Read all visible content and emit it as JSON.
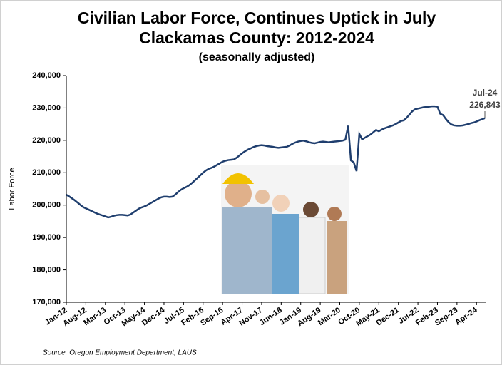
{
  "chart_data": {
    "type": "line",
    "title": [
      "Civilian Labor Force, Continues Uptick in July",
      "Clackamas County: 2012-2024"
    ],
    "subtitle": "(seasonally adjusted)",
    "y_label": "Labor Force",
    "source": "Source: Oregon Employment Department, LAUS",
    "categories": [
      "Jan-12",
      null,
      null,
      null,
      null,
      null,
      null,
      "Aug-12",
      null,
      null,
      null,
      null,
      null,
      null,
      "Mar-13",
      null,
      null,
      null,
      null,
      null,
      null,
      "Oct-13",
      null,
      null,
      null,
      null,
      null,
      null,
      "May-14",
      null,
      null,
      null,
      null,
      null,
      null,
      "Dec-14",
      null,
      null,
      null,
      null,
      null,
      null,
      "Jul-15",
      null,
      null,
      null,
      null,
      null,
      null,
      "Feb-16",
      null,
      null,
      null,
      null,
      null,
      null,
      "Sep-16",
      null,
      null,
      null,
      null,
      null,
      null,
      "Apr-17",
      null,
      null,
      null,
      null,
      null,
      null,
      "Nov-17",
      null,
      null,
      null,
      null,
      null,
      null,
      "Jun-18",
      null,
      null,
      null,
      null,
      null,
      null,
      "Jan-19",
      null,
      null,
      null,
      null,
      null,
      null,
      "Aug-19",
      null,
      null,
      null,
      null,
      null,
      null,
      "Mar-20",
      null,
      null,
      null,
      null,
      null,
      null,
      "Oct-20",
      null,
      null,
      null,
      null,
      null,
      null,
      "May-21",
      null,
      null,
      null,
      null,
      null,
      null,
      "Dec-21",
      null,
      null,
      null,
      null,
      null,
      null,
      "Jul-22",
      null,
      null,
      null,
      null,
      null,
      null,
      "Feb-23",
      null,
      null,
      null,
      null,
      null,
      null,
      "Sep-23",
      null,
      null,
      null,
      null,
      null,
      null,
      "Apr-24",
      null,
      null,
      null
    ],
    "series": [
      {
        "name": "Labor Force",
        "color": "#1f3e6e",
        "values": [
          203200,
          202700,
          202100,
          201500,
          200800,
          200100,
          199400,
          199000,
          198600,
          198200,
          197800,
          197400,
          197100,
          196800,
          196500,
          196200,
          196400,
          196700,
          196900,
          197000,
          197000,
          196900,
          196800,
          197100,
          197700,
          198300,
          198900,
          199300,
          199600,
          200000,
          200500,
          201000,
          201500,
          202000,
          202400,
          202600,
          202600,
          202500,
          202600,
          203200,
          204000,
          204700,
          205200,
          205600,
          206100,
          206800,
          207600,
          208400,
          209200,
          210000,
          210700,
          211200,
          211500,
          211900,
          212400,
          212900,
          213400,
          213700,
          213900,
          214000,
          214100,
          214600,
          215300,
          216000,
          216600,
          217100,
          217500,
          217900,
          218200,
          218400,
          218500,
          218400,
          218200,
          218100,
          218000,
          217800,
          217700,
          217800,
          217900,
          218000,
          218400,
          218900,
          219300,
          219600,
          219800,
          219900,
          219700,
          219400,
          219200,
          219100,
          219300,
          219500,
          219600,
          219500,
          219400,
          219500,
          219600,
          219700,
          219800,
          219900,
          220200,
          224500,
          213800,
          213200,
          210500,
          222000,
          220300,
          220800,
          221300,
          221800,
          222500,
          223200,
          222800,
          223300,
          223700,
          224000,
          224300,
          224600,
          225000,
          225500,
          226000,
          226200,
          227000,
          228000,
          229000,
          229600,
          229800,
          230000,
          230200,
          230300,
          230400,
          230500,
          230500,
          230400,
          228200,
          227800,
          226600,
          225600,
          224900,
          224600,
          224500,
          224500,
          224600,
          224800,
          225000,
          225300,
          225500,
          225800,
          226200,
          226500,
          226843
        ]
      }
    ],
    "ylim": [
      170000,
      240000
    ],
    "yticks": [
      {
        "value": 170000,
        "label": "170,000"
      },
      {
        "value": 180000,
        "label": "180,000"
      },
      {
        "value": 190000,
        "label": "190,000"
      },
      {
        "value": 200000,
        "label": "200,000"
      },
      {
        "value": 210000,
        "label": "210,000"
      },
      {
        "value": 220000,
        "label": "220,000"
      },
      {
        "value": 230000,
        "label": "230,000"
      },
      {
        "value": 240000,
        "label": "240,000"
      }
    ],
    "grid": false,
    "annotation": {
      "period": "Jul-24",
      "value": 226843,
      "label": "226,843"
    }
  }
}
